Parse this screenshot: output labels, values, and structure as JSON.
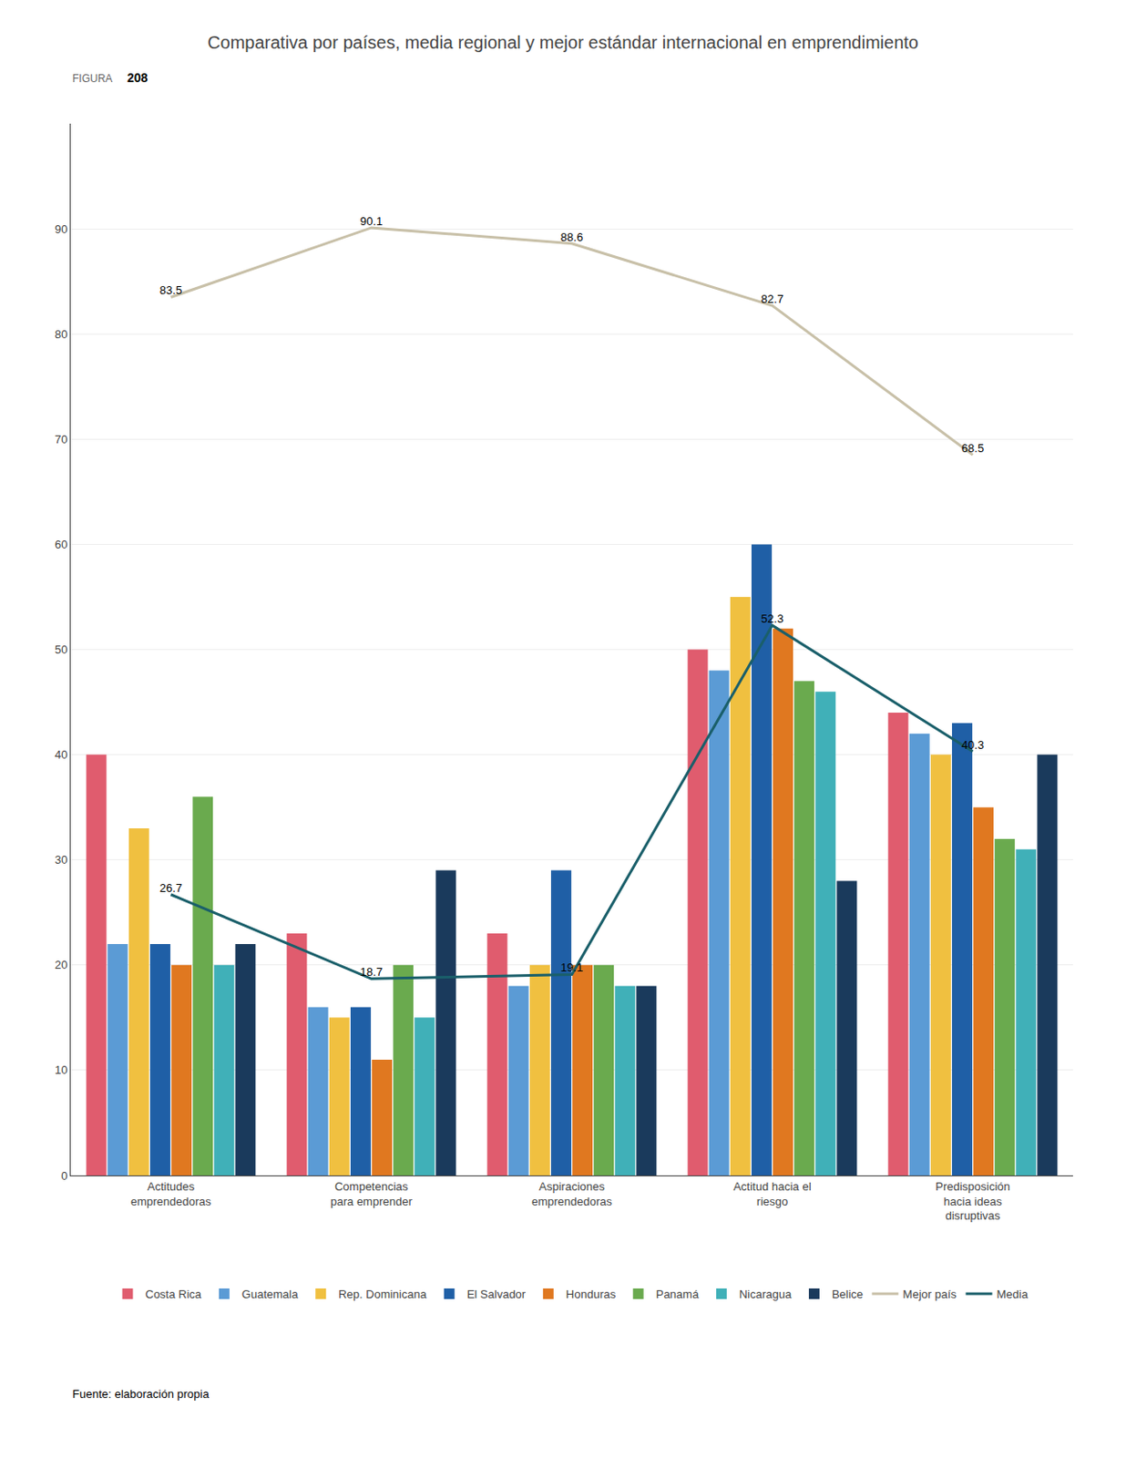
{
  "chart_data": {
    "type": "bar",
    "title": "Comparativa por países, media regional y mejor estándar internacional en emprendimiento",
    "categories": [
      "Actitudes\nemprendedoras",
      "Competencias\npara emprender",
      "Aspiraciones\nemprendedoras",
      "Actitud hacia el\nriesgo",
      "Predisposición\nhacia ideas\ndisruptivas"
    ],
    "series": [
      {
        "name": "Costa Rica",
        "color": "#e05c6e",
        "values": [
          40,
          23,
          23,
          50,
          44
        ]
      },
      {
        "name": "Guatemala",
        "color": "#5b9bd5",
        "values": [
          22,
          16,
          18,
          48,
          42
        ]
      },
      {
        "name": "Rep. Dominicana",
        "color": "#f0c040",
        "values": [
          33,
          15,
          20,
          55,
          40
        ]
      },
      {
        "name": "El Salvador",
        "color": "#1f5fa6",
        "values": [
          22,
          16,
          29,
          60,
          43
        ]
      },
      {
        "name": "Honduras",
        "color": "#e07820",
        "values": [
          20,
          11,
          20,
          52,
          35
        ]
      },
      {
        "name": "Panamá",
        "color": "#6aaa4e",
        "values": [
          36,
          20,
          20,
          47,
          32
        ]
      },
      {
        "name": "Nicaragua",
        "color": "#40b0b8",
        "values": [
          20,
          15,
          18,
          46,
          31
        ]
      },
      {
        "name": "Belice",
        "color": "#1a3a5c",
        "values": [
          22,
          29,
          18,
          28,
          40
        ]
      },
      {
        "name": "Mejor país",
        "type": "line",
        "color": "#c8c0a8",
        "values": [
          83.5,
          90.1,
          88.6,
          82.7,
          68.5
        ],
        "data_labels": true
      },
      {
        "name": "Media",
        "type": "line",
        "color": "#1a5f6a",
        "values": [
          26.7,
          18.7,
          19.1,
          52.3,
          40.3
        ],
        "data_labels": true
      }
    ],
    "ylim": [
      0,
      100
    ],
    "yticks": [
      0,
      10,
      20,
      30,
      40,
      50,
      60,
      70,
      80,
      90
    ],
    "grid": true,
    "legend": "bottom",
    "annotations": [
      "FIGURA",
      "208",
      "Fuente: elaboración propia"
    ]
  }
}
